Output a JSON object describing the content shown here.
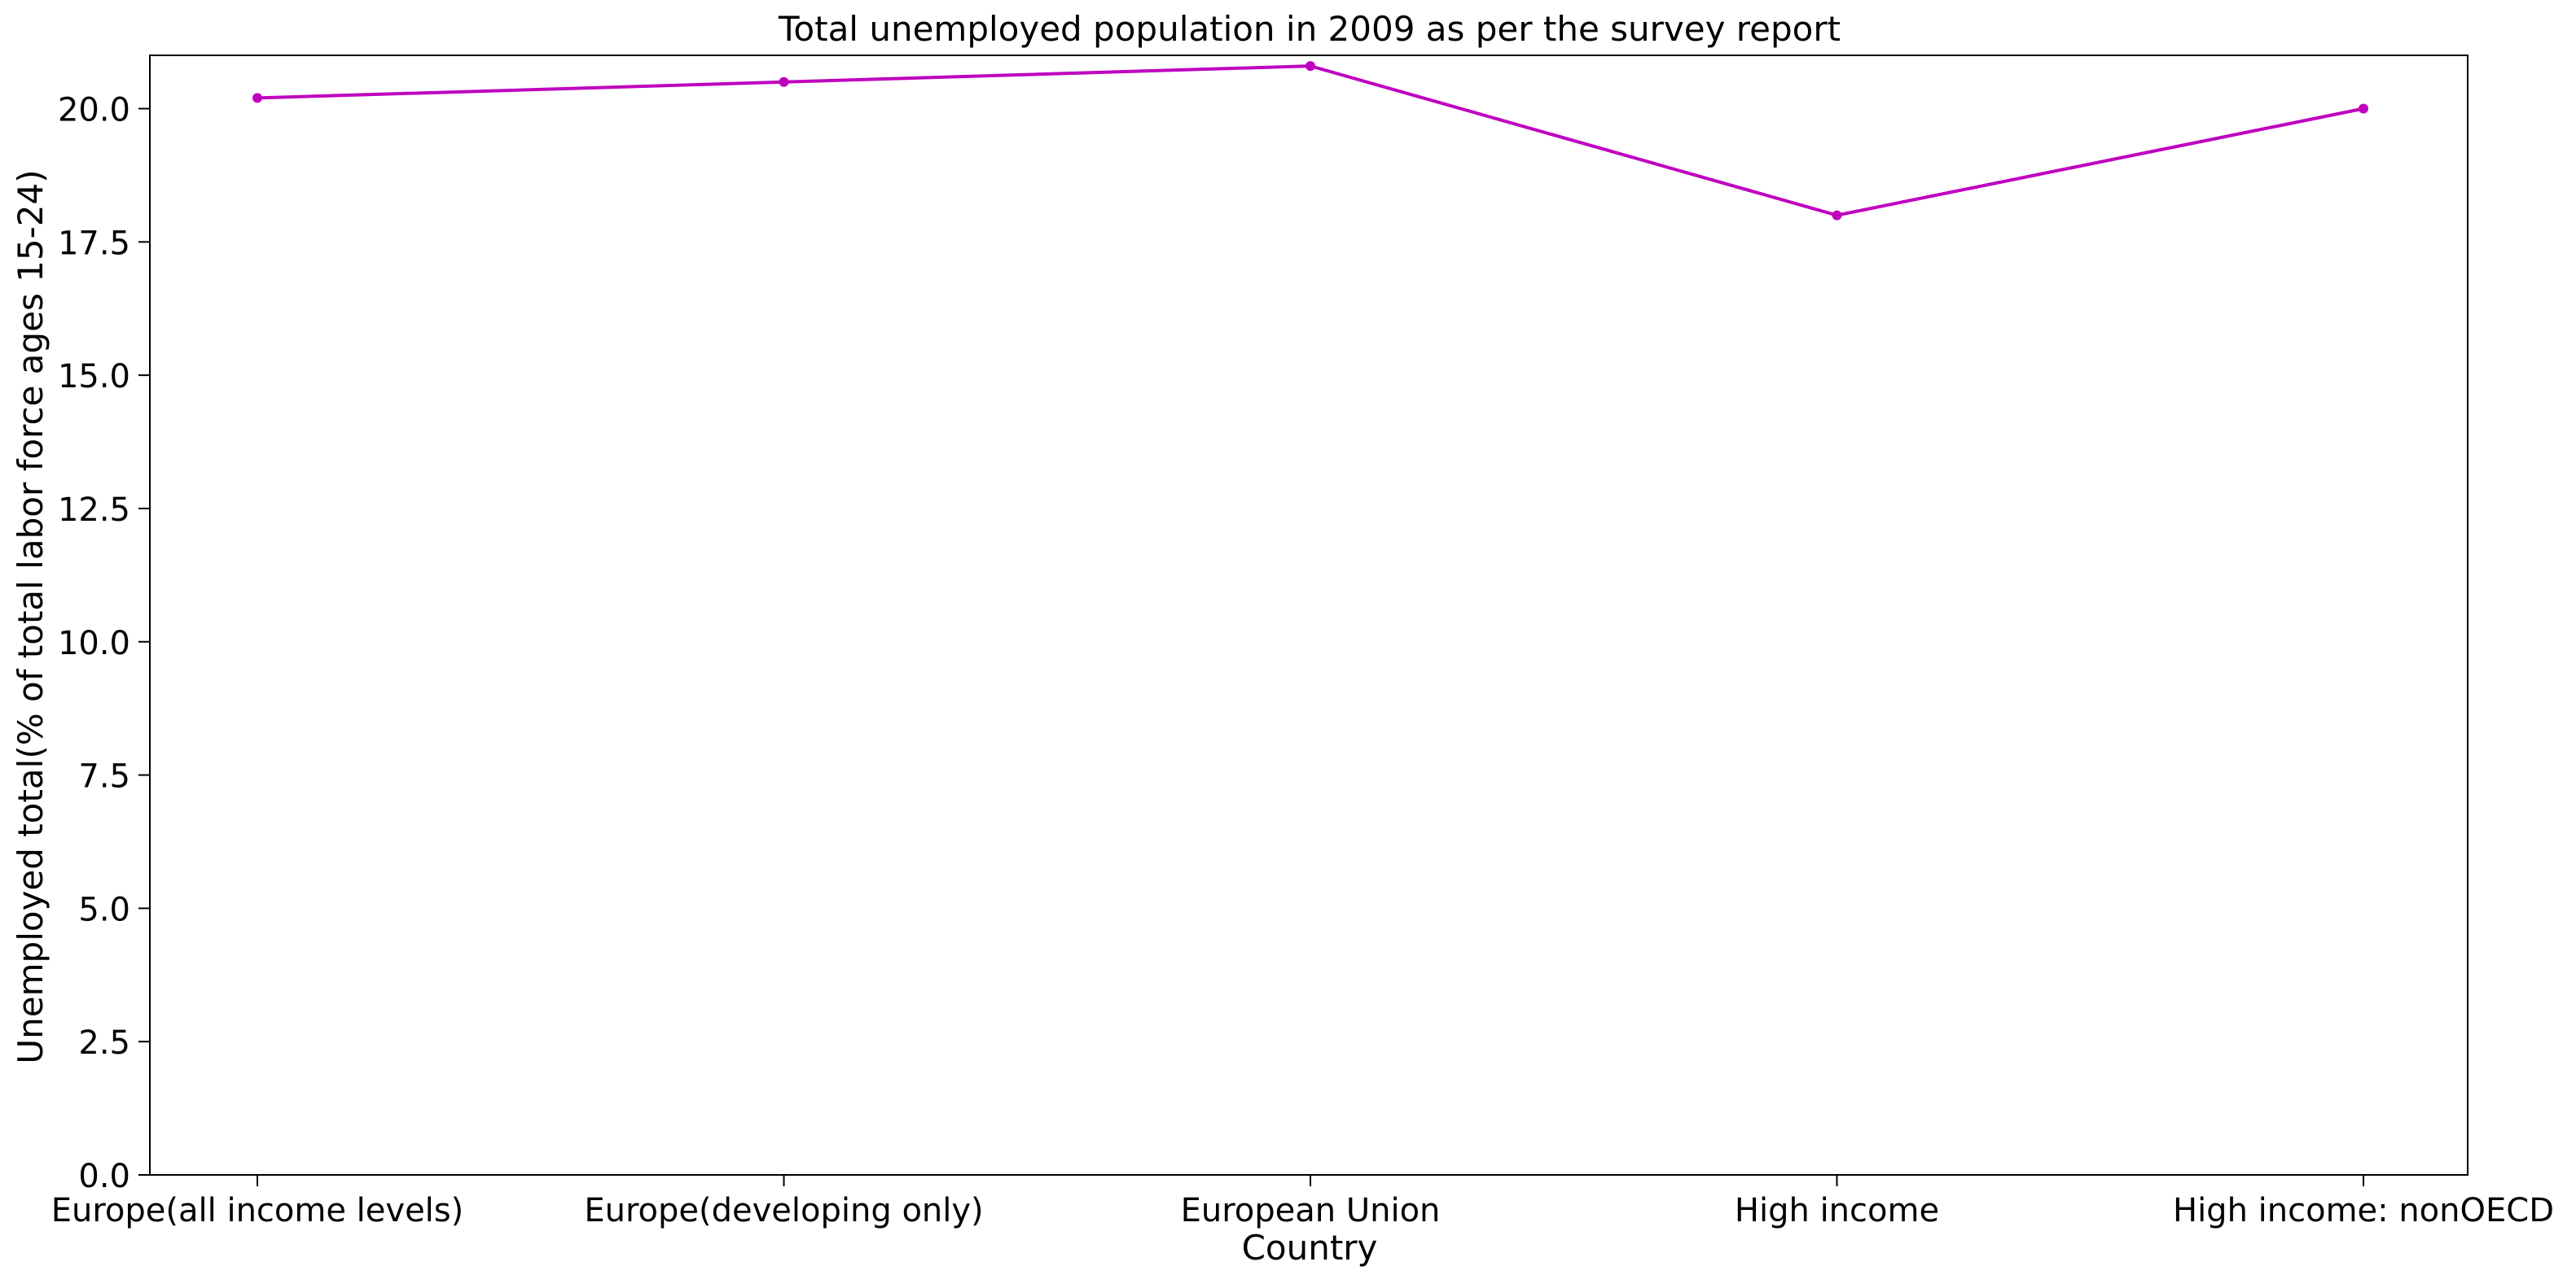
{
  "chart_data": {
    "type": "line",
    "title": "Total unemployed population in 2009 as per the survey report",
    "xlabel": "Country",
    "ylabel": "Unemployed total(% of total labor force ages 15-24)",
    "categories": [
      "Europe(all income levels)",
      "Europe(developing only)",
      "European Union",
      "High income",
      "High income: nonOECD"
    ],
    "series": [
      {
        "values": [
          20.2,
          20.5,
          20.8,
          18.0,
          20.0
        ],
        "color": "#bf00bf"
      }
    ],
    "ylim": [
      0,
      21
    ],
    "yticks": [
      "0.0",
      "2.5",
      "5.0",
      "7.5",
      "10.0",
      "12.5",
      "15.0",
      "17.5",
      "20.0"
    ],
    "grid": false,
    "legend": "none"
  }
}
